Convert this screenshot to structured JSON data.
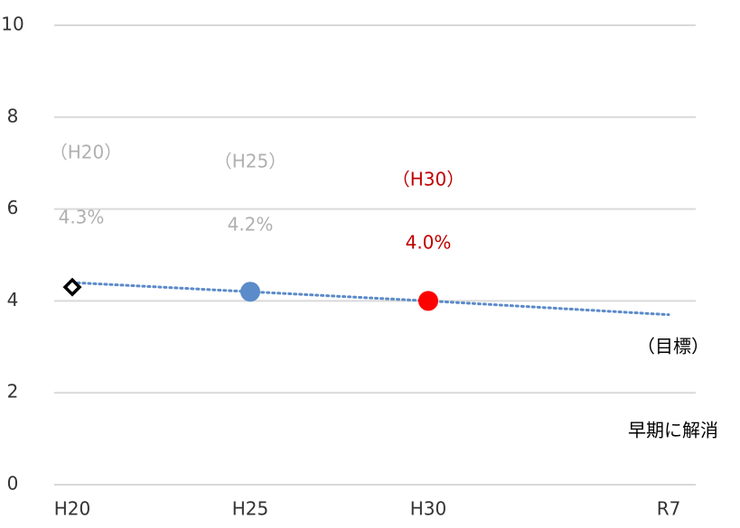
{
  "chart_data": {
    "type": "line",
    "categories": [
      "H20",
      "H25",
      "H30",
      "R7"
    ],
    "ylim": [
      0,
      10
    ],
    "yticks": [
      0,
      2,
      4,
      6,
      8,
      10
    ],
    "grid": true,
    "points": {
      "values": [
        4.3,
        4.2,
        4.0,
        null
      ],
      "value_labels": [
        "4.3%",
        "4.2%",
        "4.0%",
        null
      ],
      "period_labels": [
        "（H20）",
        "（H25）",
        "（H30）",
        null
      ],
      "colors": [
        "#000000",
        "#5b8bc9",
        "#ff0000",
        null
      ],
      "label_colors": [
        "#b0b0b0",
        "#b0b0b0",
        "#c00000",
        null
      ]
    },
    "trend": {
      "values": [
        4.4,
        4.2,
        4.0,
        3.7
      ],
      "color": "#5b8bc9"
    },
    "annotations": [
      "（目標）",
      "早期に解消"
    ]
  }
}
